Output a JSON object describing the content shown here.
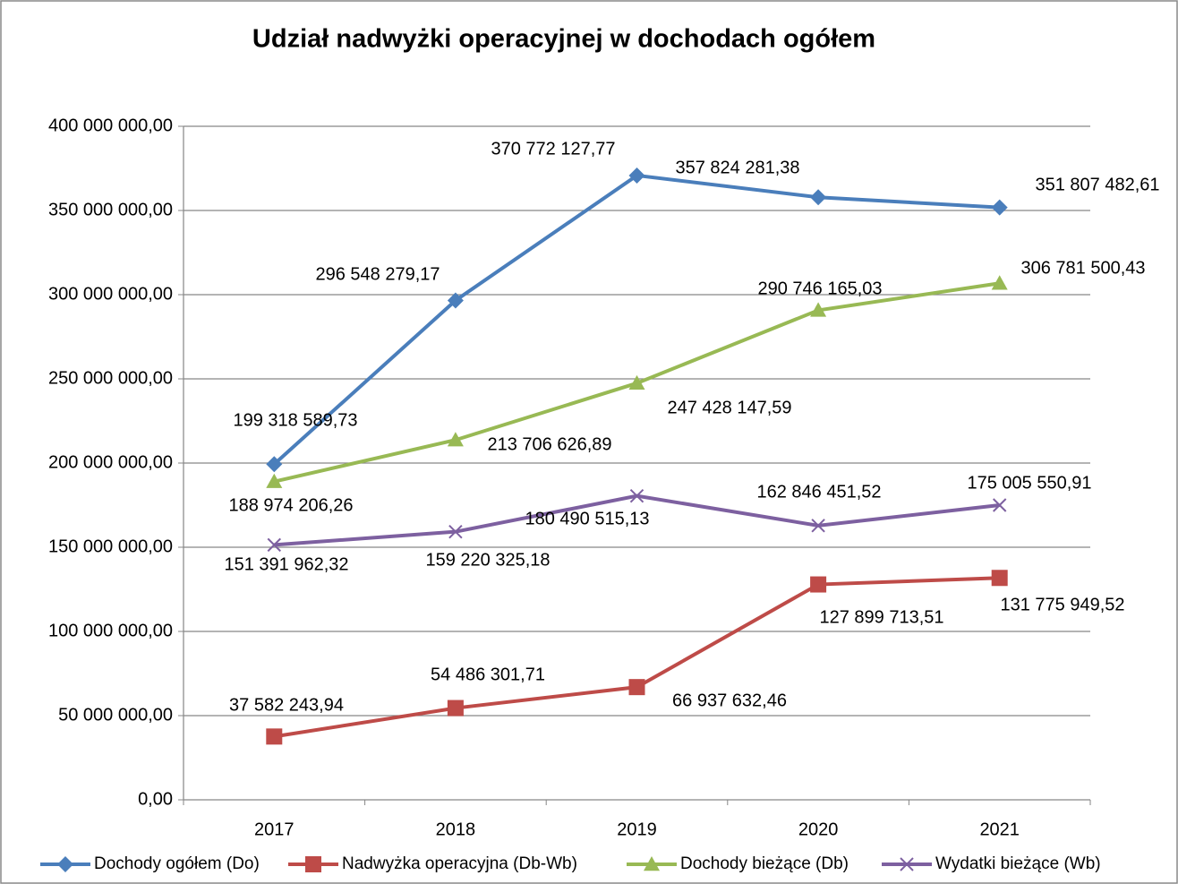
{
  "chart_data": {
    "type": "line",
    "title": "Udział nadwyżki operacyjnej w dochodach ogółem",
    "categories": [
      "2017",
      "2018",
      "2019",
      "2020",
      "2021"
    ],
    "ylim": [
      0,
      400000000
    ],
    "yticks": [
      {
        "value": 0,
        "label": "0,00"
      },
      {
        "value": 50000000,
        "label": "50 000 000,00"
      },
      {
        "value": 100000000,
        "label": "100 000 000,00"
      },
      {
        "value": 150000000,
        "label": "150 000 000,00"
      },
      {
        "value": 200000000,
        "label": "200 000 000,00"
      },
      {
        "value": 250000000,
        "label": "250 000 000,00"
      },
      {
        "value": 300000000,
        "label": "300 000 000,00"
      },
      {
        "value": 350000000,
        "label": "350 000 000,00"
      },
      {
        "value": 400000000,
        "label": "400 000 000,00"
      }
    ],
    "grid": true,
    "legend": "bottom",
    "series": [
      {
        "name": "Dochody ogółem (Do)",
        "color": "#4a7ebb",
        "marker": "diamond",
        "values": [
          199318589.73,
          296548279.17,
          370772127.77,
          357824281.38,
          351807482.61
        ],
        "value_labels": [
          "199 318 589,73",
          "296 548 279,17",
          "370 772 127,77",
          "357 824 281,38",
          "351 807 482,61"
        ]
      },
      {
        "name": "Nadwyżka operacyjna (Db-Wb)",
        "color": "#be4b48",
        "marker": "square",
        "values": [
          37582243.94,
          54486301.71,
          66937632.46,
          127899713.51,
          131775949.52
        ],
        "value_labels": [
          "37 582 243,94",
          "54 486 301,71",
          "66 937 632,46",
          "127 899 713,51",
          "131 775 949,52"
        ]
      },
      {
        "name": "Dochody bieżące (Db)",
        "color": "#98b954",
        "marker": "triangle",
        "values": [
          188974206.26,
          213706626.89,
          247428147.59,
          290746165.03,
          306781500.43
        ],
        "value_labels": [
          "188 974 206,26",
          "213 706 626,89",
          "247 428 147,59",
          "290 746 165,03",
          "306 781 500,43"
        ]
      },
      {
        "name": "Wydatki bieżące (Wb)",
        "color": "#7d60a0",
        "marker": "x",
        "values": [
          151391962.32,
          159220325.18,
          180490515.13,
          162846451.52,
          175005550.91
        ],
        "value_labels": [
          "151 391 962,32",
          "159 220 325,18",
          "180 490 515,13",
          "162 846 451,52",
          "175 005 550,91"
        ]
      }
    ]
  }
}
